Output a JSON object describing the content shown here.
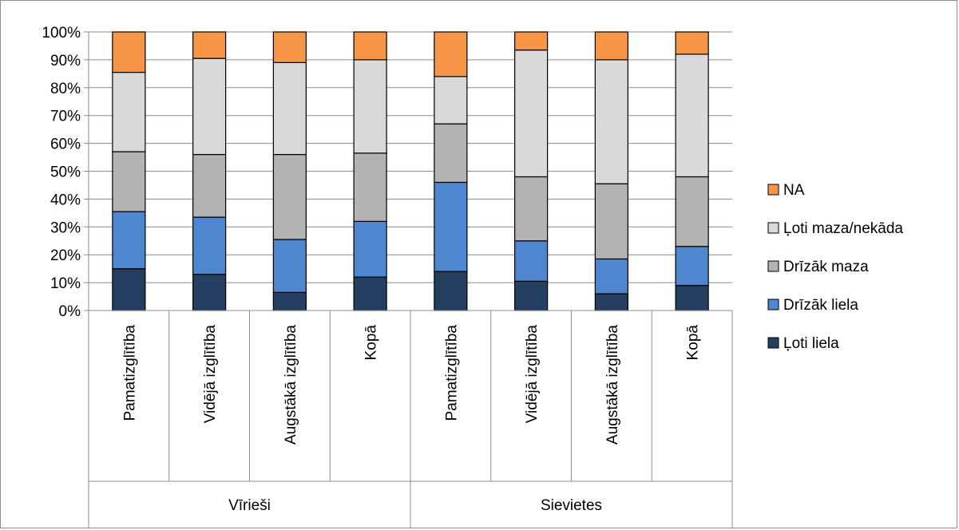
{
  "chart_data": {
    "type": "bar",
    "stacked": true,
    "percent": true,
    "groups": [
      {
        "label": "Vīrieši",
        "categories": [
          "Pamatizglītība",
          "Vidējā izglītība",
          "Augstākā izglītība",
          "Kopā"
        ]
      },
      {
        "label": "Sievietes",
        "categories": [
          "Pamatizglītība",
          "Vidējā izglītība",
          "Augstākā izglītība",
          "Kopā"
        ]
      }
    ],
    "series": [
      {
        "name": "Ļoti liela",
        "color": "#243F60",
        "values": [
          15,
          13,
          6.5,
          12,
          14,
          10.5,
          6,
          9
        ]
      },
      {
        "name": "Drīzāk liela",
        "color": "#4F86D0",
        "values": [
          20.5,
          20.5,
          19,
          20,
          32,
          14.5,
          12.5,
          14
        ]
      },
      {
        "name": "Drīzāk maza",
        "color": "#B3B3B3",
        "values": [
          21.5,
          22.5,
          30.5,
          24.5,
          21,
          23,
          27,
          25
        ]
      },
      {
        "name": "Ļoti maza/nekāda",
        "color": "#D9D9D9",
        "values": [
          28.5,
          34.5,
          33,
          33.5,
          17,
          45.5,
          44.5,
          44
        ]
      },
      {
        "name": "NA",
        "color": "#F79646",
        "values": [
          14.5,
          9.5,
          11,
          10,
          16,
          6.5,
          10,
          8
        ]
      }
    ],
    "y_ticks": [
      "0%",
      "10%",
      "20%",
      "30%",
      "40%",
      "50%",
      "60%",
      "70%",
      "80%",
      "90%",
      "100%"
    ],
    "ylim": [
      0,
      100
    ],
    "grid": true,
    "legend_position": "right",
    "legend_order": [
      "NA",
      "Ļoti maza/nekāda",
      "Drīzāk maza",
      "Drīzāk liela",
      "Ļoti liela"
    ]
  }
}
